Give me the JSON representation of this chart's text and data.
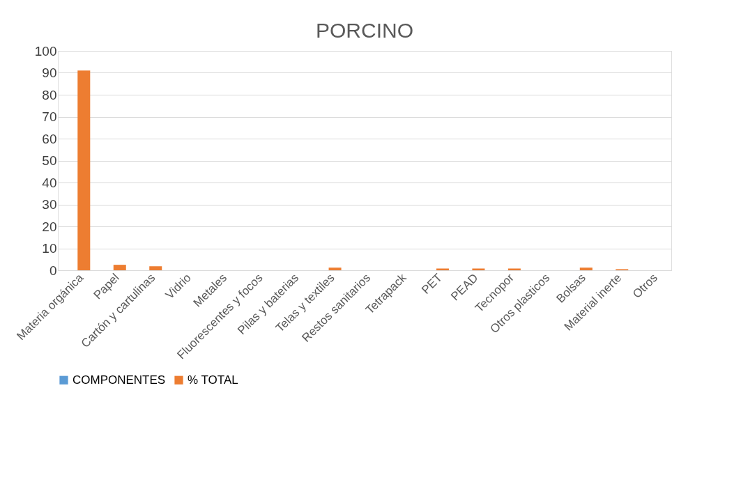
{
  "chart_data": {
    "type": "bar",
    "title": "PORCINO",
    "categories": [
      "Materia orgánica",
      "Papel",
      "Cartón y cartulinas",
      "Vidrio",
      "Metales",
      "Fluorescentes y focos",
      "Pilas y baterias",
      "Telas y textiles",
      "Restos sanitarios",
      "Tetrapack",
      "PET",
      "PEAD",
      "Tecnopor",
      "Otros plasticos",
      "Bolsas",
      "Material inerte",
      "Otros"
    ],
    "series": [
      {
        "name": "COMPONENTES",
        "color": "#5b9bd5",
        "values": [
          null,
          null,
          null,
          null,
          null,
          null,
          null,
          null,
          null,
          null,
          null,
          null,
          null,
          null,
          null,
          null,
          null
        ]
      },
      {
        "name": "% TOTAL",
        "color": "#ed7d31",
        "values": [
          91,
          2.5,
          1.8,
          0,
          0,
          0,
          0,
          1.2,
          0,
          0,
          0.8,
          0.8,
          0.8,
          0,
          1.2,
          0.5,
          0
        ]
      }
    ],
    "ylim": [
      0,
      100
    ],
    "yticks": [
      0,
      10,
      20,
      30,
      40,
      50,
      60,
      70,
      80,
      90,
      100
    ],
    "grid": "y",
    "legend": "bottom"
  }
}
